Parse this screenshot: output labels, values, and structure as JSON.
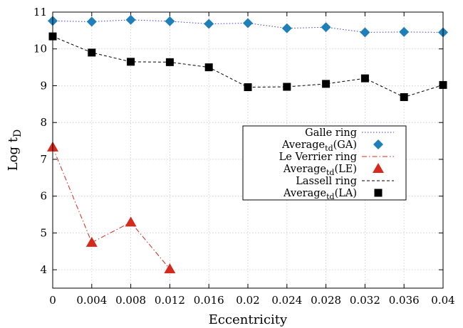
{
  "chart_data": {
    "type": "line",
    "xlabel": "Eccentricity",
    "ylabel_base": "Log t",
    "ylabel_sub": "D",
    "xlim": [
      0,
      0.04
    ],
    "ylim": [
      3.5,
      11
    ],
    "xticks": [
      0,
      0.004,
      0.008,
      0.012,
      0.016,
      0.02,
      0.024,
      0.028,
      0.032,
      0.036,
      0.04
    ],
    "xtick_labels": [
      "0",
      "0.004",
      "0.008",
      "0.012",
      "0.016",
      "0.02",
      "0.024",
      "0.028",
      "0.032",
      "0.036",
      "0.04"
    ],
    "yticks": [
      4,
      5,
      6,
      7,
      8,
      9,
      10,
      11
    ],
    "ytick_labels": [
      "4",
      "5",
      "6",
      "7",
      "8",
      "9",
      "10",
      "11"
    ],
    "grid": true,
    "legend_position": "right",
    "series": [
      {
        "name": "Galle ring",
        "kind": "line",
        "color": "#3a3adf",
        "dash": "dotted",
        "x": [
          0,
          0.004,
          0.008,
          0.012,
          0.016,
          0.02,
          0.024,
          0.028,
          0.032,
          0.036,
          0.04
        ],
        "y": [
          10.76,
          10.74,
          10.79,
          10.75,
          10.68,
          10.7,
          10.56,
          10.59,
          10.45,
          10.46,
          10.45
        ]
      },
      {
        "name_base": "Average",
        "name_sub": "td",
        "name_tail": "(GA)",
        "kind": "points",
        "marker": "diamond",
        "color": "#1f7fb8",
        "x": [
          0,
          0.004,
          0.008,
          0.012,
          0.016,
          0.02,
          0.024,
          0.028,
          0.032,
          0.036,
          0.04
        ],
        "y": [
          10.76,
          10.74,
          10.79,
          10.75,
          10.68,
          10.7,
          10.56,
          10.59,
          10.45,
          10.46,
          10.45
        ]
      },
      {
        "name": "Le Verrier ring",
        "kind": "line",
        "color": "#d42a1e",
        "dash": "dashdot",
        "x": [
          0,
          0.004,
          0.008,
          0.012
        ],
        "y": [
          7.33,
          4.74,
          5.29,
          4.02
        ]
      },
      {
        "name_base": "Average",
        "name_sub": "td",
        "name_tail": "(LE)",
        "kind": "points",
        "marker": "triangle",
        "color": "#d42a1e",
        "x": [
          0,
          0.004,
          0.008,
          0.012
        ],
        "y": [
          7.33,
          4.74,
          5.29,
          4.02
        ]
      },
      {
        "name": "Lassell ring",
        "kind": "line",
        "color": "#000000",
        "dash": "dashed",
        "x": [
          0,
          0.004,
          0.008,
          0.012,
          0.016,
          0.02,
          0.024,
          0.028,
          0.032,
          0.036,
          0.04
        ],
        "y": [
          10.34,
          9.9,
          9.65,
          9.64,
          9.5,
          8.96,
          8.97,
          9.05,
          9.2,
          8.69,
          9.02
        ]
      },
      {
        "name_base": "Average",
        "name_sub": "td",
        "name_tail": "(LA)",
        "kind": "points",
        "marker": "square",
        "color": "#000000",
        "x": [
          0,
          0.004,
          0.008,
          0.012,
          0.016,
          0.02,
          0.024,
          0.028,
          0.032,
          0.036,
          0.04
        ],
        "y": [
          10.34,
          9.9,
          9.65,
          9.64,
          9.5,
          8.96,
          8.97,
          9.05,
          9.2,
          8.69,
          9.02
        ]
      }
    ]
  }
}
